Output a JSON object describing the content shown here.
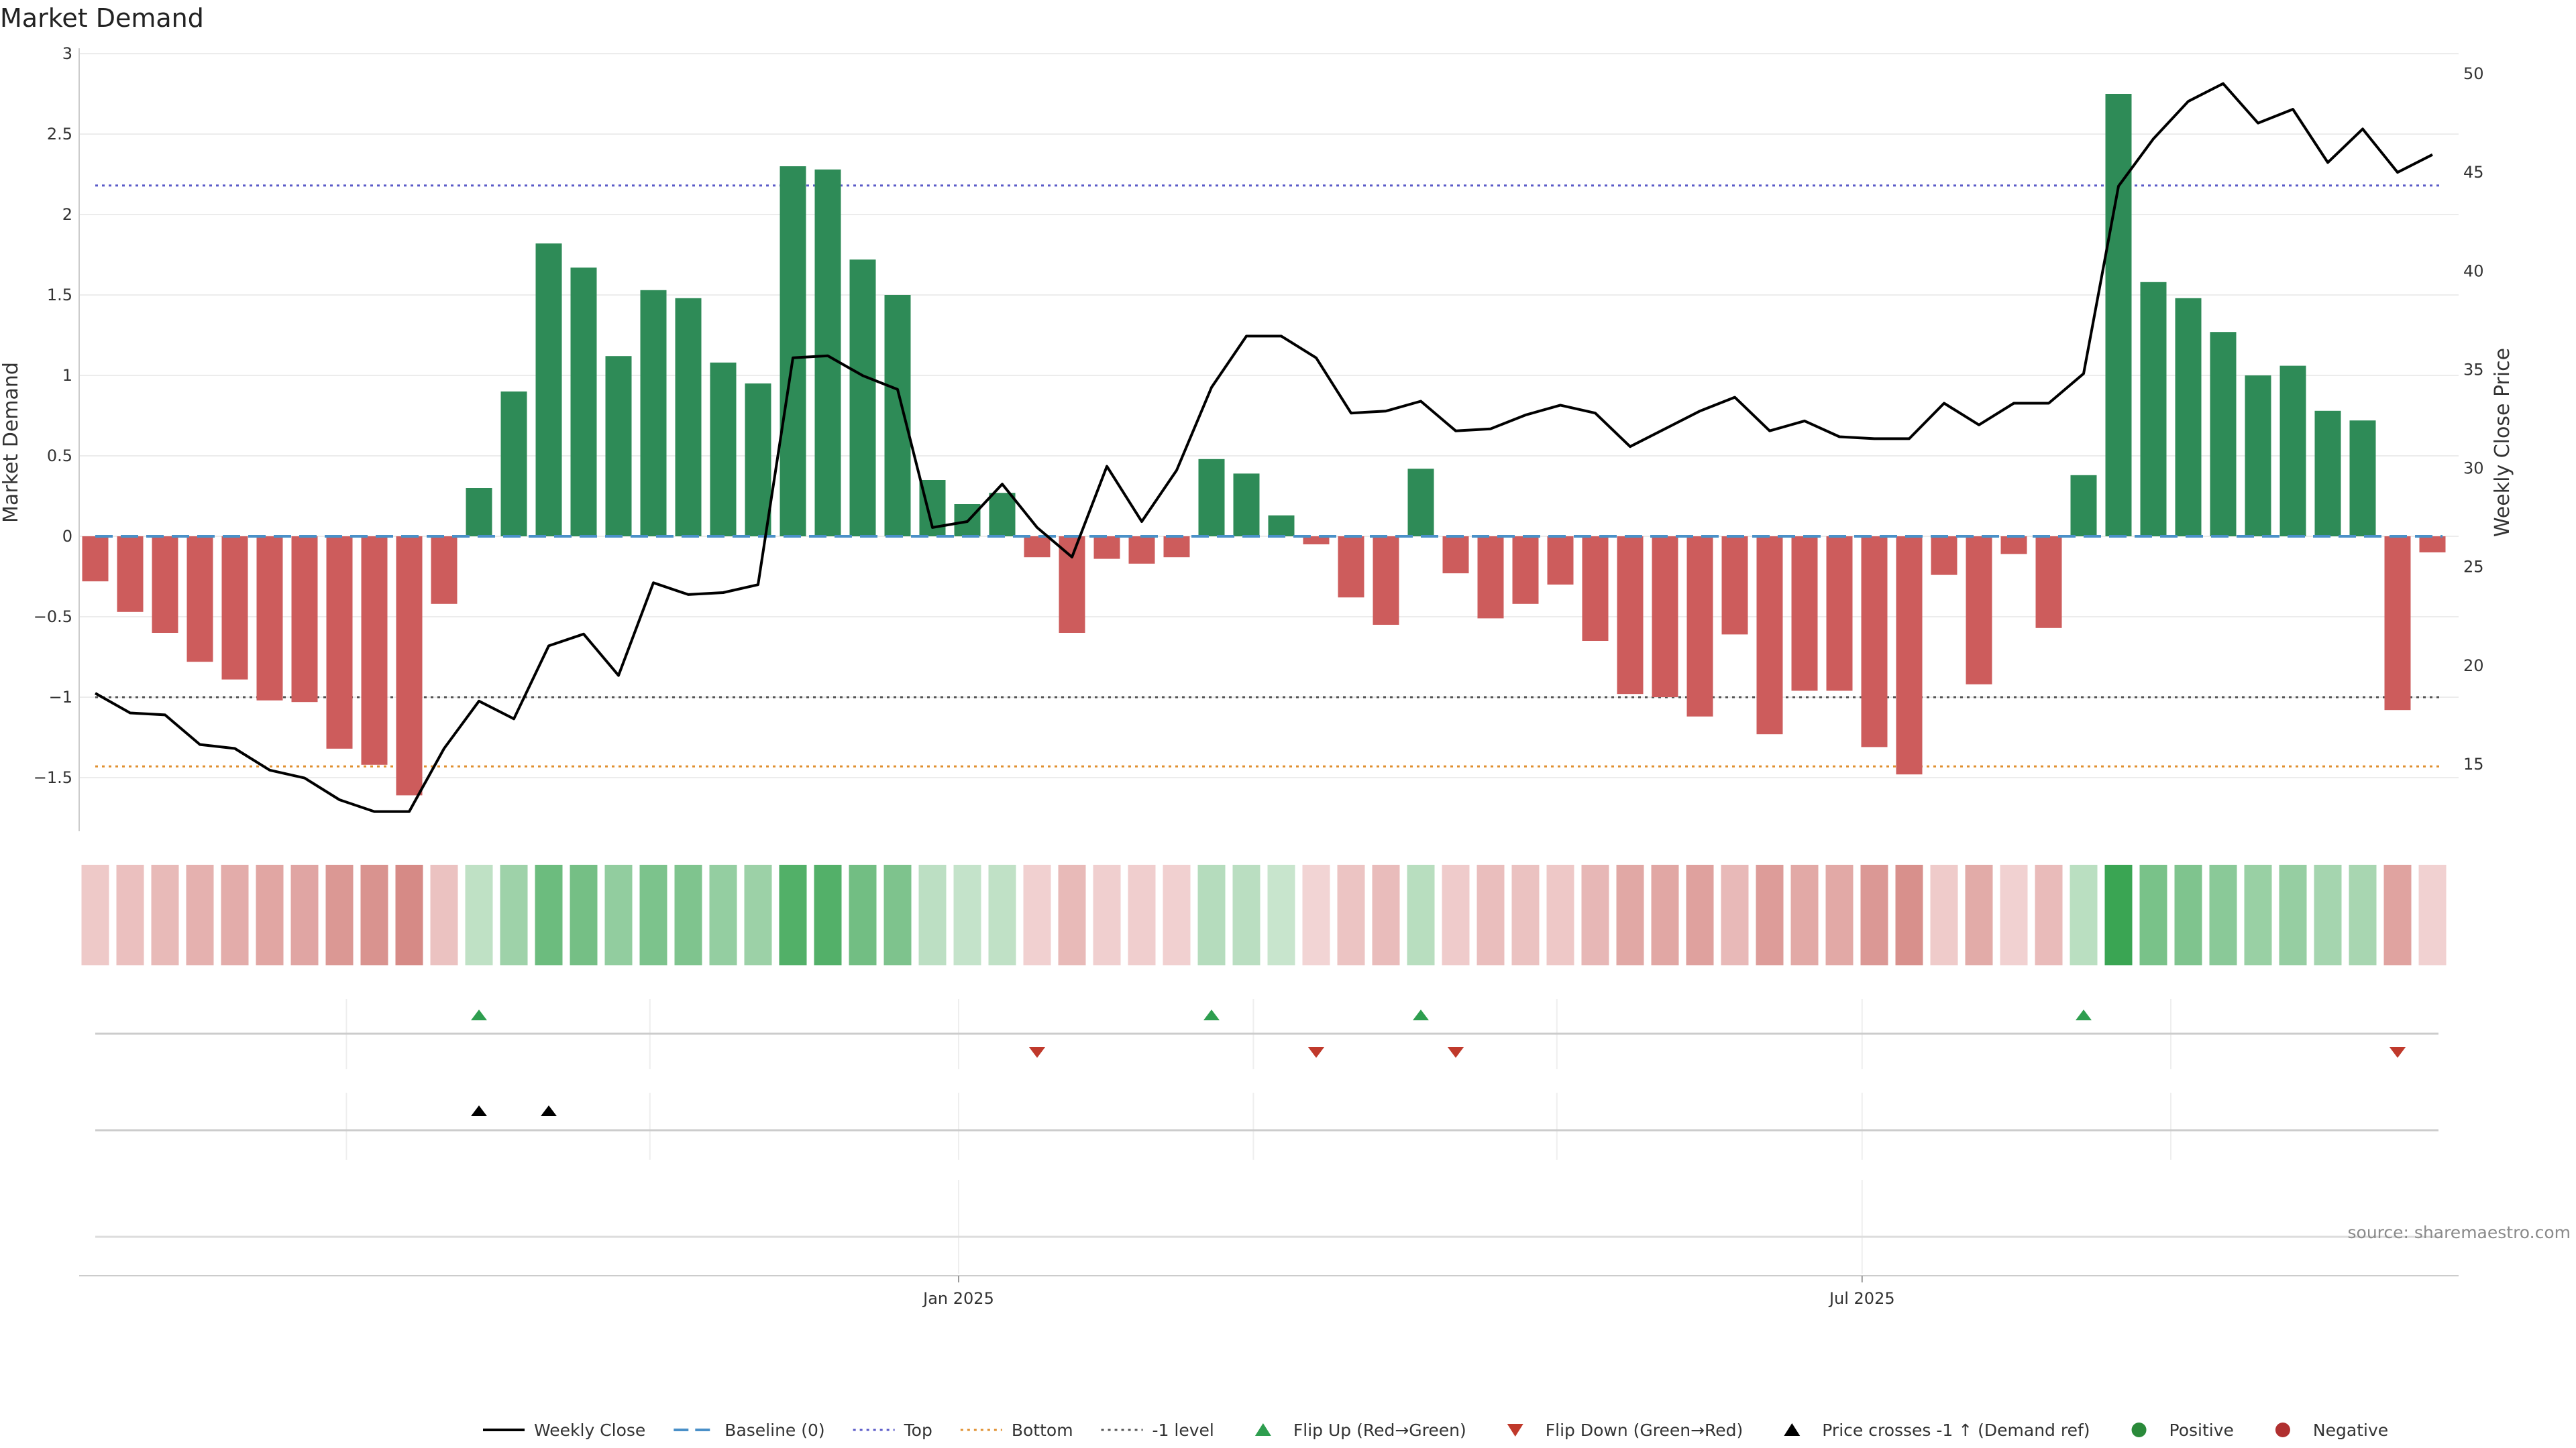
{
  "chart_data": {
    "type": "bar",
    "title": "Market Demand",
    "ylabel": "Market Demand",
    "y2label": "Weekly Close Price",
    "ylim": [
      -1.85,
      3.0
    ],
    "y2lim": [
      12.5,
      51
    ],
    "yticks": [
      "3",
      "2.5",
      "2",
      "1.5",
      "1",
      "0.5",
      "0",
      "−0.5",
      "−1",
      "−1.5"
    ],
    "ytick_values": [
      3,
      2.5,
      2,
      1.5,
      1,
      0.5,
      0,
      -0.5,
      -1,
      -1.5
    ],
    "y2ticks": [
      "50",
      "45",
      "40",
      "35",
      "30",
      "25",
      "20",
      "15"
    ],
    "y2tick_values": [
      50,
      45,
      40,
      35,
      30,
      25,
      20,
      15
    ],
    "date_ticks": [
      "Jan 2025",
      "Jul 2025"
    ],
    "date_tick_weeks": [
      24.75,
      50.65
    ],
    "minor_date_weeks": [
      7.2,
      15.9,
      33.2,
      41.9,
      59.5
    ],
    "demand": [
      -0.28,
      -0.47,
      -0.6,
      -0.78,
      -0.89,
      -1.02,
      -1.03,
      -1.32,
      -1.42,
      -1.61,
      -0.42,
      0.3,
      0.9,
      1.82,
      1.67,
      1.12,
      1.53,
      1.48,
      1.08,
      0.95,
      2.3,
      2.28,
      1.72,
      1.5,
      0.35,
      0.2,
      0.27,
      -0.13,
      -0.6,
      -0.14,
      -0.17,
      -0.13,
      0.48,
      0.39,
      0.13,
      -0.05,
      -0.38,
      -0.55,
      0.42,
      -0.23,
      -0.51,
      -0.42,
      -0.3,
      -0.65,
      -0.98,
      -1.0,
      -1.12,
      -0.61,
      -1.23,
      -0.96,
      -0.96,
      -1.31,
      -1.48,
      -0.24,
      -0.92,
      -0.11,
      -0.57,
      0.38,
      2.75,
      1.58,
      1.48,
      1.27,
      1.0,
      1.06,
      0.78,
      0.72,
      -1.08,
      -0.1
    ],
    "close": [
      18.6,
      17.6,
      17.5,
      16.0,
      15.8,
      14.7,
      14.3,
      13.2,
      12.6,
      12.6,
      15.8,
      18.2,
      17.3,
      21.0,
      21.6,
      19.5,
      24.2,
      23.6,
      23.7,
      24.1,
      35.6,
      35.7,
      34.7,
      34.0,
      27.0,
      27.3,
      29.2,
      27.0,
      25.5,
      30.1,
      27.3,
      29.9,
      34.1,
      36.7,
      36.7,
      35.6,
      32.8,
      32.9,
      33.4,
      31.9,
      32.0,
      32.7,
      33.2,
      32.8,
      31.1,
      32.0,
      32.9,
      33.6,
      31.9,
      32.4,
      31.6,
      31.5,
      31.5,
      33.3,
      32.2,
      33.3,
      33.3,
      34.8,
      44.3,
      46.7,
      48.6,
      49.5,
      47.5,
      48.2,
      45.5,
      47.2,
      45.0,
      45.9
    ],
    "top_level": 2.18,
    "bottom_level": -1.43,
    "minus_one_level": -1.0,
    "flip_up_weeks": [
      11,
      32,
      38,
      57
    ],
    "flip_down_weeks": [
      27,
      35,
      39,
      66
    ],
    "price_cross_weeks": [
      11,
      13
    ],
    "legend": [
      {
        "label": "Weekly Close",
        "style": "line",
        "color": "#000000"
      },
      {
        "label": "Baseline (0)",
        "style": "dash",
        "color": "#4a90c8"
      },
      {
        "label": "Top",
        "style": "dot",
        "color": "#5a5ac8"
      },
      {
        "label": "Bottom",
        "style": "dot",
        "color": "#e09030"
      },
      {
        "label": "-1 level",
        "style": "dot",
        "color": "#555555"
      },
      {
        "label": "Flip Up (Red→Green)",
        "style": "triangle-up",
        "color": "#2e9e4f"
      },
      {
        "label": "Flip Down (Green→Red)",
        "style": "triangle-down",
        "color": "#c0392b"
      },
      {
        "label": "Price crosses -1 ↑ (Demand ref)",
        "style": "triangle-up",
        "color": "#000000"
      },
      {
        "label": "Positive",
        "style": "circle",
        "color": "#2a8a3a"
      },
      {
        "label": "Negative",
        "style": "circle",
        "color": "#b03030"
      }
    ],
    "colors": {
      "positive": "#2e8b57",
      "negative": "#cd5c5c",
      "close": "#000000",
      "baseline": "#4a90c8",
      "top": "#5a5ac8",
      "bottom": "#e09030",
      "minus_one": "#555555"
    }
  },
  "source": "source: sharemaestro.com"
}
